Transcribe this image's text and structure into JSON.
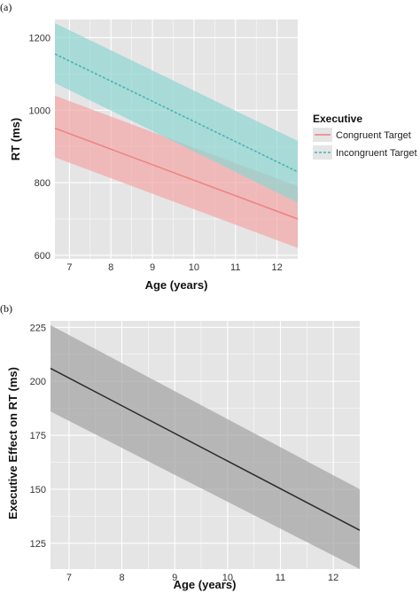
{
  "chart_data": [
    {
      "panel": "(a)",
      "type": "line",
      "title": "",
      "xlabel": "Age (years)",
      "ylabel": "RT (ms)",
      "xlim": [
        6.65,
        12.5
      ],
      "ylim": [
        590,
        1250
      ],
      "xticks": [
        7,
        8,
        9,
        10,
        11,
        12
      ],
      "yticks": [
        600,
        800,
        1000,
        1200
      ],
      "grid": true,
      "legend": {
        "title": "Executive",
        "placement": "right"
      },
      "colors": {
        "panel_bg": "#e5e5e5",
        "grid": "#ffffff"
      },
      "series": [
        {
          "name": "Congruent Target",
          "color": "#f08080",
          "band_color": "#f4a6a6",
          "line_style": "solid",
          "x": [
            6.65,
            12.5
          ],
          "y": [
            950,
            700
          ],
          "lower": [
            870,
            620
          ],
          "upper": [
            1040,
            790
          ]
        },
        {
          "name": "Incongruent Target",
          "color": "#3fb3b3",
          "band_color": "#8fd6d2",
          "line_style": "dashed",
          "x": [
            6.65,
            12.5
          ],
          "y": [
            1155,
            830
          ],
          "lower": [
            1075,
            745
          ],
          "upper": [
            1240,
            915
          ]
        }
      ]
    },
    {
      "panel": "(b)",
      "type": "line",
      "title": "",
      "xlabel": "Age (years)",
      "ylabel": "Executive Effect on RT (ms)",
      "xlim": [
        6.65,
        12.5
      ],
      "ylim": [
        113,
        228
      ],
      "xticks": [
        7,
        8,
        9,
        10,
        11,
        12
      ],
      "yticks": [
        125,
        150,
        175,
        200,
        225
      ],
      "grid": true,
      "colors": {
        "panel_bg": "#e5e5e5",
        "grid": "#ffffff"
      },
      "series": [
        {
          "color": "#2b2b2b",
          "band_color": "#a3a3a3",
          "line_style": "solid",
          "x": [
            6.65,
            12.5
          ],
          "y": [
            206,
            131
          ],
          "lower": [
            186,
            113
          ],
          "upper": [
            226,
            150
          ]
        }
      ]
    }
  ]
}
